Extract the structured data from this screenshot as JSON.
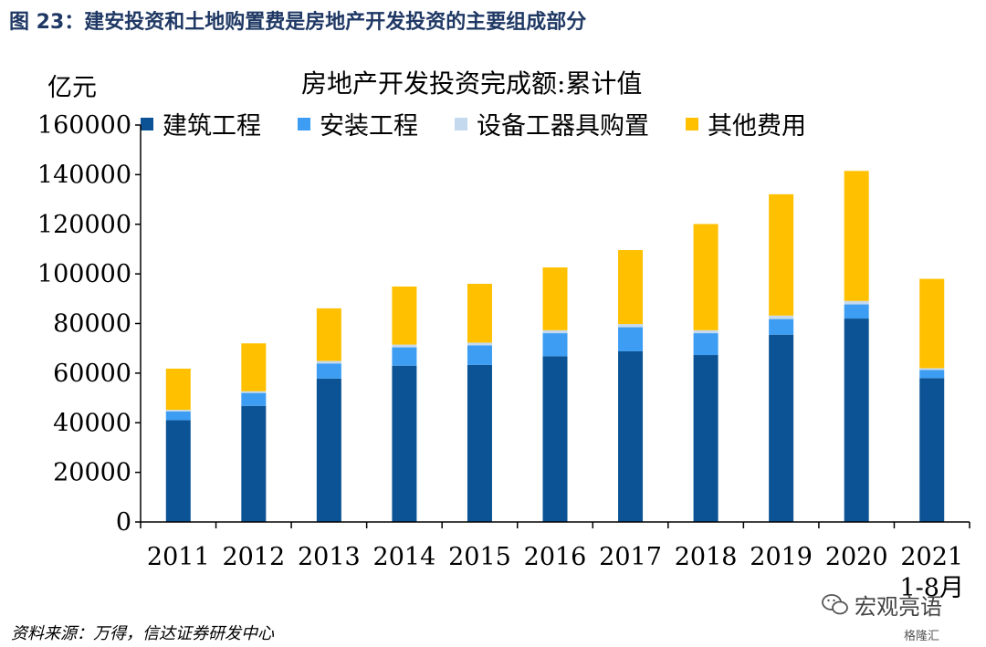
{
  "figure_title": "图 23：建安投资和土地购置费是房地产开发投资的主要组成部分",
  "source": "资料来源：万得，信达证券研发中心",
  "watermark": {
    "text": "宏观亮语",
    "sub": "格隆汇",
    "icon": "wechat-icon"
  },
  "colors": {
    "construction": "#0b5394",
    "installation": "#3d9df2",
    "equipment": "#c5d9ee",
    "other": "#ffc000",
    "title": "#1f3864"
  },
  "chart_data": {
    "type": "bar",
    "stacked": true,
    "title": "房地产开发投资完成额:累计值",
    "ylabel": "亿元",
    "xlabel": "",
    "ylim": [
      0,
      160000
    ],
    "yticks": [
      "0",
      "20000",
      "40000",
      "60000",
      "80000",
      "100000",
      "120000",
      "140000",
      "160000"
    ],
    "legend_position": "top",
    "grid": false,
    "categories": [
      "2011",
      "2012",
      "2013",
      "2014",
      "2015",
      "2016",
      "2017",
      "2018",
      "2019",
      "2020",
      "2021\n1-8月"
    ],
    "series": [
      {
        "name": "建筑工程",
        "color_key": "construction",
        "values": [
          41000,
          46800,
          57800,
          63000,
          63300,
          66800,
          68800,
          67300,
          75500,
          82000,
          58000
        ]
      },
      {
        "name": "安装工程",
        "color_key": "installation",
        "values": [
          3600,
          5200,
          6100,
          7400,
          7900,
          9300,
          9700,
          8800,
          6300,
          5700,
          3300
        ]
      },
      {
        "name": "设备工器具购置",
        "color_key": "equipment",
        "values": [
          600,
          700,
          1000,
          1100,
          1100,
          1200,
          1300,
          1200,
          1400,
          1400,
          700
        ]
      },
      {
        "name": "其他费用",
        "color_key": "other",
        "values": [
          16600,
          19300,
          21200,
          23400,
          23700,
          25300,
          29800,
          42800,
          48900,
          52400,
          36000
        ]
      }
    ]
  }
}
